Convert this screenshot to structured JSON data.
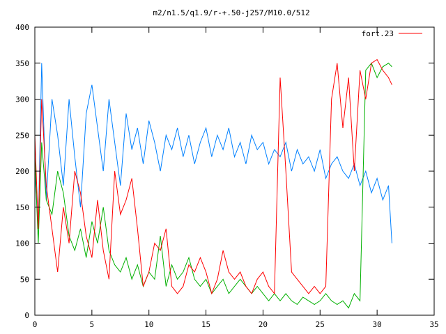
{
  "colors": {
    "background": "#ffffff",
    "axes": "#000000",
    "series_red": "#ff0000",
    "series_blue": "#0080ff",
    "series_green": "#00b000"
  },
  "chart_data": {
    "type": "line",
    "title": "m2/n1.5/q1.9/r-+.50-j257/M10.0/512",
    "xlabel": "",
    "ylabel": "",
    "xlim": [
      0,
      35
    ],
    "ylim": [
      0,
      400
    ],
    "x_ticks": [
      "0",
      "5",
      "10",
      "15",
      "20",
      "25",
      "30",
      "35"
    ],
    "y_ticks": [
      "0",
      "50",
      "100",
      "150",
      "200",
      "250",
      "300",
      "350",
      "400"
    ],
    "grid": false,
    "legend": "top-right",
    "legend_entries": [
      "fort.23"
    ],
    "series": [
      {
        "name": "fort.23",
        "color": "#ff0000",
        "x": [
          0,
          0.3,
          0.6,
          1.0,
          1.5,
          2.0,
          2.5,
          3.0,
          3.5,
          4.0,
          4.5,
          5.0,
          5.5,
          6.0,
          6.5,
          7.0,
          7.5,
          8.0,
          8.5,
          9.0,
          9.5,
          10.0,
          10.5,
          11.0,
          11.5,
          12.0,
          12.5,
          13.0,
          13.5,
          14.0,
          14.5,
          15.0,
          15.5,
          16.0,
          16.5,
          17.0,
          17.5,
          18.0,
          18.5,
          19.0,
          19.5,
          20.0,
          20.5,
          21.0,
          21.5,
          22.0,
          22.5,
          23.0,
          23.5,
          24.0,
          24.5,
          25.0,
          25.5,
          26.0,
          26.5,
          27.0,
          27.5,
          28.0,
          28.5,
          29.0,
          29.5,
          30.0,
          30.5,
          31.0,
          31.3
        ],
        "y": [
          250,
          120,
          300,
          180,
          120,
          60,
          150,
          100,
          200,
          170,
          110,
          80,
          160,
          90,
          50,
          200,
          140,
          160,
          190,
          120,
          40,
          60,
          100,
          90,
          120,
          40,
          30,
          40,
          70,
          60,
          80,
          60,
          30,
          50,
          90,
          60,
          50,
          60,
          40,
          30,
          50,
          60,
          40,
          30,
          330,
          200,
          60,
          50,
          40,
          30,
          40,
          30,
          40,
          300,
          350,
          260,
          330,
          200,
          340,
          300,
          350,
          355,
          340,
          330,
          320
        ]
      },
      {
        "name": "",
        "color": "#0080ff",
        "x": [
          0,
          0.3,
          0.6,
          1.0,
          1.5,
          2.0,
          2.5,
          3.0,
          3.5,
          4.0,
          4.5,
          5.0,
          5.5,
          6.0,
          6.5,
          7.0,
          7.5,
          8.0,
          8.5,
          9.0,
          9.5,
          10.0,
          10.5,
          11.0,
          11.5,
          12.0,
          12.5,
          13.0,
          13.5,
          14.0,
          14.5,
          15.0,
          15.5,
          16.0,
          16.5,
          17.0,
          17.5,
          18.0,
          18.5,
          19.0,
          19.5,
          20.0,
          20.5,
          21.0,
          21.5,
          22.0,
          22.5,
          23.0,
          23.5,
          24.0,
          24.5,
          25.0,
          25.5,
          26.0,
          26.5,
          27.0,
          27.5,
          28.0,
          28.5,
          29.0,
          29.5,
          30.0,
          30.5,
          31.0,
          31.3
        ],
        "y": [
          200,
          120,
          350,
          160,
          300,
          250,
          180,
          300,
          220,
          150,
          280,
          320,
          260,
          200,
          300,
          240,
          180,
          280,
          230,
          260,
          210,
          270,
          240,
          200,
          250,
          230,
          260,
          220,
          250,
          210,
          240,
          260,
          220,
          250,
          230,
          260,
          220,
          240,
          210,
          250,
          230,
          240,
          210,
          230,
          220,
          240,
          200,
          230,
          210,
          220,
          200,
          230,
          190,
          210,
          220,
          200,
          190,
          210,
          180,
          200,
          170,
          190,
          160,
          180,
          100
        ]
      },
      {
        "name": "",
        "color": "#00b000",
        "x": [
          0,
          0.3,
          0.6,
          1.0,
          1.5,
          2.0,
          2.5,
          3.0,
          3.5,
          4.0,
          4.5,
          5.0,
          5.5,
          6.0,
          6.5,
          7.0,
          7.5,
          8.0,
          8.5,
          9.0,
          9.5,
          10.0,
          10.5,
          11.0,
          11.5,
          12.0,
          12.5,
          13.0,
          13.5,
          14.0,
          14.5,
          15.0,
          15.5,
          16.0,
          16.5,
          17.0,
          17.5,
          18.0,
          18.5,
          19.0,
          19.5,
          20.0,
          20.5,
          21.0,
          21.5,
          22.0,
          22.5,
          23.0,
          23.5,
          24.0,
          24.5,
          25.0,
          25.5,
          26.0,
          26.5,
          27.0,
          27.5,
          28.0,
          28.5,
          29.0,
          29.5,
          30.0,
          30.5,
          31.0,
          31.3
        ],
        "y": [
          220,
          100,
          240,
          160,
          140,
          200,
          170,
          110,
          90,
          120,
          80,
          130,
          100,
          150,
          90,
          70,
          60,
          80,
          50,
          70,
          40,
          60,
          50,
          110,
          40,
          70,
          50,
          60,
          80,
          50,
          40,
          50,
          30,
          40,
          50,
          30,
          40,
          50,
          40,
          30,
          40,
          30,
          20,
          30,
          20,
          30,
          20,
          15,
          25,
          20,
          15,
          20,
          30,
          20,
          15,
          20,
          10,
          30,
          20,
          340,
          350,
          330,
          345,
          350,
          345
        ]
      }
    ]
  }
}
